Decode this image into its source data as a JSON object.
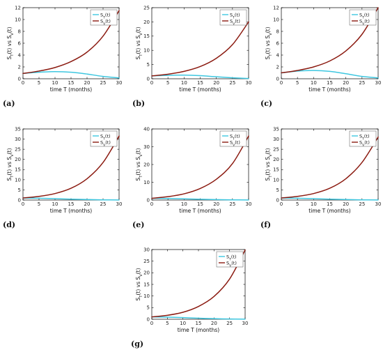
{
  "colors": {
    "s_t": "#3ec7e0",
    "s_v": "#8b1a10",
    "axis": "#000000",
    "bg": "#ffffff"
  },
  "chart_data": [
    {
      "id": "a",
      "type": "line",
      "panel_label": "(a)",
      "xlabel": "time T (months)",
      "ylabel": "S_T(t) vs S_V(t)",
      "xlim": [
        0,
        30
      ],
      "ylim": [
        0,
        12
      ],
      "xticks": [
        0,
        5,
        10,
        15,
        20,
        25,
        30
      ],
      "yticks": [
        0,
        2,
        4,
        6,
        8,
        10,
        12
      ],
      "legend_position": "top-right",
      "series": [
        {
          "name": "S_T(t)",
          "color": "#3ec7e0",
          "x": [
            0,
            5,
            10,
            15,
            20,
            25,
            30
          ],
          "y": [
            0.9,
            1.1,
            1.2,
            1.1,
            0.8,
            0.4,
            0.15
          ]
        },
        {
          "name": "S_V(t)",
          "color": "#8b1a10",
          "x": [
            0,
            5,
            10,
            15,
            20,
            25,
            30
          ],
          "y": [
            0.9,
            1.3,
            1.9,
            2.9,
            4.5,
            7.2,
            11.5
          ]
        }
      ]
    },
    {
      "id": "b",
      "type": "line",
      "panel_label": "(b)",
      "xlabel": "time T (months)",
      "ylabel": "S_T(t) vs S_V(t)",
      "xlim": [
        0,
        30
      ],
      "ylim": [
        0,
        25
      ],
      "xticks": [
        0,
        5,
        10,
        15,
        20,
        25,
        30
      ],
      "yticks": [
        0,
        5,
        10,
        15,
        20,
        25
      ],
      "legend_position": "top-right",
      "series": [
        {
          "name": "S_T(t)",
          "color": "#3ec7e0",
          "x": [
            0,
            5,
            10,
            15,
            20,
            25,
            30
          ],
          "y": [
            1,
            1.2,
            1.3,
            1.1,
            0.7,
            0.35,
            0.1
          ]
        },
        {
          "name": "S_V(t)",
          "color": "#8b1a10",
          "x": [
            0,
            5,
            10,
            15,
            20,
            25,
            30
          ],
          "y": [
            1,
            1.6,
            2.6,
            4.3,
            7.2,
            12,
            20
          ]
        }
      ]
    },
    {
      "id": "c",
      "type": "line",
      "panel_label": "(c)",
      "xlabel": "time T (months)",
      "ylabel": "S_T(t) vs S_V(t)",
      "xlim": [
        0,
        30
      ],
      "ylim": [
        0,
        12
      ],
      "xticks": [
        0,
        5,
        10,
        15,
        20,
        25,
        30
      ],
      "yticks": [
        0,
        2,
        4,
        6,
        8,
        10,
        12
      ],
      "legend_position": "top-right",
      "series": [
        {
          "name": "S_T(t)",
          "color": "#3ec7e0",
          "x": [
            0,
            5,
            10,
            15,
            20,
            25,
            30
          ],
          "y": [
            1,
            1.3,
            1.4,
            1.25,
            0.85,
            0.4,
            0.15
          ]
        },
        {
          "name": "S_V(t)",
          "color": "#8b1a10",
          "x": [
            0,
            5,
            10,
            15,
            20,
            25,
            30
          ],
          "y": [
            1,
            1.4,
            2,
            3,
            4.7,
            7.5,
            12
          ]
        }
      ]
    },
    {
      "id": "d",
      "type": "line",
      "panel_label": "(d)",
      "xlabel": "time T (months)",
      "ylabel": "S_T(t) vs S_V(t)",
      "xlim": [
        0,
        30
      ],
      "ylim": [
        0,
        35
      ],
      "xticks": [
        0,
        5,
        10,
        15,
        20,
        25,
        30
      ],
      "yticks": [
        0,
        5,
        10,
        15,
        20,
        25,
        30,
        35
      ],
      "legend_position": "top-right",
      "series": [
        {
          "name": "S_T(t)",
          "color": "#3ec7e0",
          "x": [
            0,
            5,
            10,
            15,
            20,
            25,
            30
          ],
          "y": [
            1,
            0.9,
            0.7,
            0.45,
            0.25,
            0.1,
            0.05
          ]
        },
        {
          "name": "S_V(t)",
          "color": "#8b1a10",
          "x": [
            0,
            5,
            10,
            15,
            20,
            25,
            30
          ],
          "y": [
            1,
            1.8,
            3.2,
            5.8,
            10.5,
            18.5,
            31.5
          ]
        }
      ]
    },
    {
      "id": "e",
      "type": "line",
      "panel_label": "(e)",
      "xlabel": "time T (months)",
      "ylabel": "S_T(t) vs S_V(t)",
      "xlim": [
        0,
        30
      ],
      "ylim": [
        0,
        40
      ],
      "xticks": [
        0,
        5,
        10,
        15,
        20,
        25,
        30
      ],
      "yticks": [
        0,
        10,
        20,
        30,
        40
      ],
      "legend_position": "top-right",
      "series": [
        {
          "name": "S_T(t)",
          "color": "#3ec7e0",
          "x": [
            0,
            5,
            10,
            15,
            20,
            25,
            30
          ],
          "y": [
            1,
            0.9,
            0.7,
            0.45,
            0.25,
            0.1,
            0.05
          ]
        },
        {
          "name": "S_V(t)",
          "color": "#8b1a10",
          "x": [
            0,
            5,
            10,
            15,
            20,
            25,
            30
          ],
          "y": [
            1,
            1.9,
            3.5,
            6.5,
            11.7,
            20.5,
            36
          ]
        }
      ]
    },
    {
      "id": "f",
      "type": "line",
      "panel_label": "(f)",
      "xlabel": "time T (months)",
      "ylabel": "S_T(t) vs S_V(t)",
      "xlim": [
        0,
        30
      ],
      "ylim": [
        0,
        35
      ],
      "xticks": [
        0,
        5,
        10,
        15,
        20,
        25,
        30
      ],
      "yticks": [
        0,
        5,
        10,
        15,
        20,
        25,
        30,
        35
      ],
      "legend_position": "top-right",
      "series": [
        {
          "name": "S_T(t)",
          "color": "#3ec7e0",
          "x": [
            0,
            5,
            10,
            15,
            20,
            25,
            30
          ],
          "y": [
            1,
            0.9,
            0.7,
            0.45,
            0.25,
            0.1,
            0.05
          ]
        },
        {
          "name": "S_V(t)",
          "color": "#8b1a10",
          "x": [
            0,
            5,
            10,
            15,
            20,
            25,
            30
          ],
          "y": [
            1,
            1.8,
            3.2,
            5.8,
            10.5,
            18.5,
            31
          ]
        }
      ]
    },
    {
      "id": "g",
      "type": "line",
      "panel_label": "(g)",
      "xlabel": "time T (months)",
      "ylabel": "S_T(t) vs S_V(t)",
      "xlim": [
        0,
        30
      ],
      "ylim": [
        0,
        30
      ],
      "xticks": [
        0,
        5,
        10,
        15,
        20,
        25,
        30
      ],
      "yticks": [
        0,
        5,
        10,
        15,
        20,
        25,
        30
      ],
      "legend_position": "top-right",
      "series": [
        {
          "name": "S_T(t)",
          "color": "#3ec7e0",
          "x": [
            0,
            5,
            10,
            15,
            20,
            25,
            30
          ],
          "y": [
            1,
            0.9,
            0.7,
            0.45,
            0.25,
            0.1,
            0.05
          ]
        },
        {
          "name": "S_V(t)",
          "color": "#8b1a10",
          "x": [
            0,
            5,
            10,
            15,
            20,
            25,
            30
          ],
          "y": [
            1,
            1.7,
            3,
            5.5,
            9.8,
            17.3,
            29.8
          ]
        }
      ]
    }
  ]
}
